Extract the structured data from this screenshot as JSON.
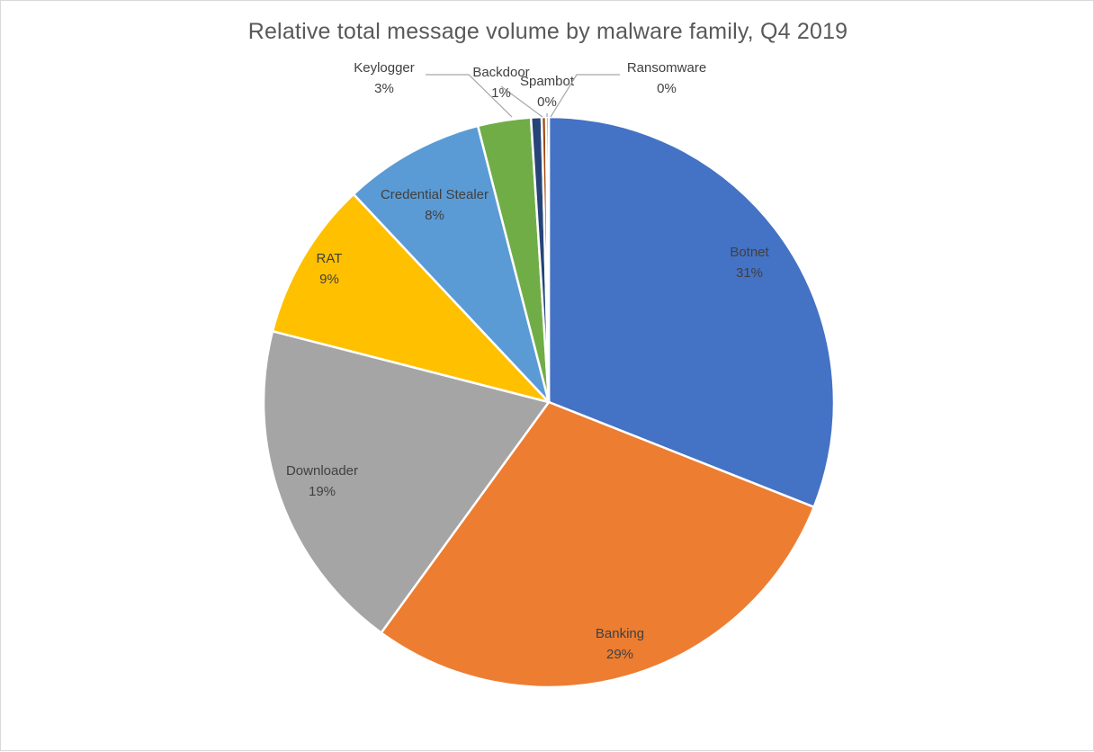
{
  "chart_data": {
    "type": "pie",
    "title": "Relative total message volume by malware family, Q4 2019",
    "slices": [
      {
        "name": "Botnet",
        "value": 31,
        "label": "31%",
        "color": "#4472c4"
      },
      {
        "name": "Banking",
        "value": 29,
        "label": "29%",
        "color": "#ed7d31"
      },
      {
        "name": "Downloader",
        "value": 19,
        "label": "19%",
        "color": "#a5a5a5"
      },
      {
        "name": "RAT",
        "value": 9,
        "label": "9%",
        "color": "#ffc000"
      },
      {
        "name": "Credential Stealer",
        "value": 8,
        "label": "8%",
        "color": "#5b9bd5"
      },
      {
        "name": "Keylogger",
        "value": 3,
        "label": "3%",
        "color": "#70ad47"
      },
      {
        "name": "Backdoor",
        "value": 0.6,
        "label": "1%",
        "color": "#264478"
      },
      {
        "name": "Spambot",
        "value": 0.25,
        "label": "0%",
        "color": "#9e480e"
      },
      {
        "name": "Ransomware",
        "value": 0.15,
        "label": "0%",
        "color": "#636363"
      }
    ],
    "legend": "none",
    "data_labels": "category name and percentage"
  }
}
